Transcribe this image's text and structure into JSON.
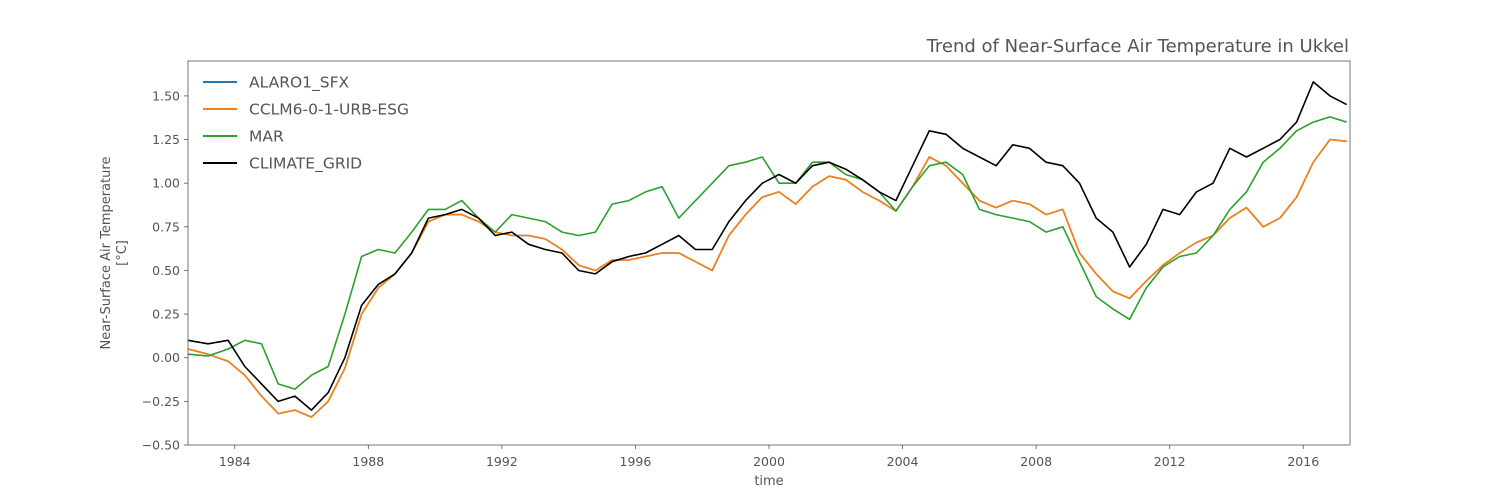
{
  "chart_data": {
    "type": "line",
    "title": "Trend of Near-Surface Air Temperature in Ukkel",
    "xlabel": "time",
    "ylabel": "Near-Surface Air Temperature",
    "ylabel_unit": "[°C]",
    "xlim": [
      1982.6,
      2017.4
    ],
    "ylim": [
      -0.5,
      1.7
    ],
    "x_ticks": [
      1984,
      1988,
      1992,
      1996,
      2000,
      2004,
      2008,
      2012,
      2016
    ],
    "y_ticks": [
      -0.5,
      -0.25,
      0.0,
      0.25,
      0.5,
      0.75,
      1.0,
      1.25,
      1.5
    ],
    "y_tick_labels": [
      "−0.50",
      "−0.25",
      "0.00",
      "0.25",
      "0.50",
      "0.75",
      "1.00",
      "1.25",
      "1.50"
    ],
    "grid": false,
    "legend_position": "top-left",
    "series": [
      {
        "name": "ALARO1_SFX",
        "color": "#1f77b4",
        "x": [
          1982.6,
          1983.2,
          1983.8,
          1984.3,
          1984.8,
          1985.3,
          1985.8,
          1986.3,
          1986.8,
          1987.3,
          1987.8,
          1988.3,
          1988.8,
          1989.3,
          1989.8,
          1990.3,
          1990.8,
          1991.3,
          1991.8,
          1992.3,
          1992.8,
          1993.3,
          1993.8,
          1994.3,
          1994.8,
          1995.3,
          1995.8,
          1996.3,
          1996.8,
          1997.3,
          1997.8,
          1998.3,
          1998.8,
          1999.3,
          1999.8,
          2000.3,
          2000.8,
          2001.3,
          2001.8,
          2002.3,
          2002.8,
          2003.3,
          2003.8,
          2004.3,
          2004.8,
          2005.3,
          2005.8,
          2006.3,
          2006.8,
          2007.3,
          2007.8,
          2008.3,
          2008.8,
          2009.3,
          2009.8,
          2010.3,
          2010.8,
          2011.3,
          2011.8,
          2012.3,
          2012.8,
          2013.3,
          2013.8,
          2014.3,
          2014.8,
          2015.3,
          2015.8,
          2016.3,
          2016.8,
          2017.3
        ],
        "y": [
          0.05,
          0.02,
          -0.02,
          -0.1,
          -0.22,
          -0.32,
          -0.3,
          -0.34,
          -0.25,
          -0.06,
          0.25,
          0.4,
          0.48,
          0.6,
          0.78,
          0.82,
          0.82,
          0.78,
          0.72,
          0.7,
          0.7,
          0.68,
          0.62,
          0.53,
          0.5,
          0.56,
          0.56,
          0.58,
          0.6,
          0.6,
          0.55,
          0.5,
          0.7,
          0.82,
          0.92,
          0.95,
          0.88,
          0.98,
          1.04,
          1.02,
          0.95,
          0.9,
          0.84,
          0.98,
          1.15,
          1.1,
          1.0,
          0.9,
          0.86,
          0.9,
          0.88,
          0.82,
          0.85,
          0.6,
          0.48,
          0.38,
          0.34,
          0.44,
          0.53,
          0.6,
          0.66,
          0.7,
          0.8,
          0.86,
          0.75,
          0.8,
          0.92,
          1.12,
          1.25,
          1.24
        ]
      },
      {
        "name": "CCLM6-0-1-URB-ESG",
        "color": "#ff7f0e",
        "x": [
          1982.6,
          1983.2,
          1983.8,
          1984.3,
          1984.8,
          1985.3,
          1985.8,
          1986.3,
          1986.8,
          1987.3,
          1987.8,
          1988.3,
          1988.8,
          1989.3,
          1989.8,
          1990.3,
          1990.8,
          1991.3,
          1991.8,
          1992.3,
          1992.8,
          1993.3,
          1993.8,
          1994.3,
          1994.8,
          1995.3,
          1995.8,
          1996.3,
          1996.8,
          1997.3,
          1997.8,
          1998.3,
          1998.8,
          1999.3,
          1999.8,
          2000.3,
          2000.8,
          2001.3,
          2001.8,
          2002.3,
          2002.8,
          2003.3,
          2003.8,
          2004.3,
          2004.8,
          2005.3,
          2005.8,
          2006.3,
          2006.8,
          2007.3,
          2007.8,
          2008.3,
          2008.8,
          2009.3,
          2009.8,
          2010.3,
          2010.8,
          2011.3,
          2011.8,
          2012.3,
          2012.8,
          2013.3,
          2013.8,
          2014.3,
          2014.8,
          2015.3,
          2015.8,
          2016.3,
          2016.8,
          2017.3
        ],
        "y": [
          0.05,
          0.02,
          -0.02,
          -0.1,
          -0.22,
          -0.32,
          -0.3,
          -0.34,
          -0.25,
          -0.06,
          0.25,
          0.4,
          0.48,
          0.6,
          0.78,
          0.82,
          0.82,
          0.78,
          0.72,
          0.7,
          0.7,
          0.68,
          0.62,
          0.53,
          0.5,
          0.56,
          0.56,
          0.58,
          0.6,
          0.6,
          0.55,
          0.5,
          0.7,
          0.82,
          0.92,
          0.95,
          0.88,
          0.98,
          1.04,
          1.02,
          0.95,
          0.9,
          0.84,
          0.98,
          1.15,
          1.1,
          1.0,
          0.9,
          0.86,
          0.9,
          0.88,
          0.82,
          0.85,
          0.6,
          0.48,
          0.38,
          0.34,
          0.44,
          0.53,
          0.6,
          0.66,
          0.7,
          0.8,
          0.86,
          0.75,
          0.8,
          0.92,
          1.12,
          1.25,
          1.24
        ]
      },
      {
        "name": "MAR",
        "color": "#2ca02c",
        "x": [
          1982.6,
          1983.2,
          1983.8,
          1984.3,
          1984.8,
          1985.3,
          1985.8,
          1986.3,
          1986.8,
          1987.3,
          1987.8,
          1988.3,
          1988.8,
          1989.3,
          1989.8,
          1990.3,
          1990.8,
          1991.3,
          1991.8,
          1992.3,
          1992.8,
          1993.3,
          1993.8,
          1994.3,
          1994.8,
          1995.3,
          1995.8,
          1996.3,
          1996.8,
          1997.3,
          1997.8,
          1998.3,
          1998.8,
          1999.3,
          1999.8,
          2000.3,
          2000.8,
          2001.3,
          2001.8,
          2002.3,
          2002.8,
          2003.3,
          2003.8,
          2004.3,
          2004.8,
          2005.3,
          2005.8,
          2006.3,
          2006.8,
          2007.3,
          2007.8,
          2008.3,
          2008.8,
          2009.3,
          2009.8,
          2010.3,
          2010.8,
          2011.3,
          2011.8,
          2012.3,
          2012.8,
          2013.3,
          2013.8,
          2014.3,
          2014.8,
          2015.3,
          2015.8,
          2016.3,
          2016.8,
          2017.3
        ],
        "y": [
          0.02,
          0.01,
          0.05,
          0.1,
          0.08,
          -0.15,
          -0.18,
          -0.1,
          -0.05,
          0.25,
          0.58,
          0.62,
          0.6,
          0.72,
          0.85,
          0.85,
          0.9,
          0.8,
          0.72,
          0.82,
          0.8,
          0.78,
          0.72,
          0.7,
          0.72,
          0.88,
          0.9,
          0.95,
          0.98,
          0.8,
          0.9,
          1.0,
          1.1,
          1.12,
          1.15,
          1.0,
          1.0,
          1.12,
          1.12,
          1.05,
          1.02,
          0.95,
          0.84,
          0.98,
          1.1,
          1.12,
          1.05,
          0.85,
          0.82,
          0.8,
          0.78,
          0.72,
          0.75,
          0.55,
          0.35,
          0.28,
          0.22,
          0.4,
          0.52,
          0.58,
          0.6,
          0.7,
          0.85,
          0.95,
          1.12,
          1.2,
          1.3,
          1.35,
          1.38,
          1.35
        ]
      },
      {
        "name": "CLIMATE_GRID",
        "color": "#000000",
        "x": [
          1982.6,
          1983.2,
          1983.8,
          1984.3,
          1984.8,
          1985.3,
          1985.8,
          1986.3,
          1986.8,
          1987.3,
          1987.8,
          1988.3,
          1988.8,
          1989.3,
          1989.8,
          1990.3,
          1990.8,
          1991.3,
          1991.8,
          1992.3,
          1992.8,
          1993.3,
          1993.8,
          1994.3,
          1994.8,
          1995.3,
          1995.8,
          1996.3,
          1996.8,
          1997.3,
          1997.8,
          1998.3,
          1998.8,
          1999.3,
          1999.8,
          2000.3,
          2000.8,
          2001.3,
          2001.8,
          2002.3,
          2002.8,
          2003.3,
          2003.8,
          2004.3,
          2004.8,
          2005.3,
          2005.8,
          2006.3,
          2006.8,
          2007.3,
          2007.8,
          2008.3,
          2008.8,
          2009.3,
          2009.8,
          2010.3,
          2010.8,
          2011.3,
          2011.8,
          2012.3,
          2012.8,
          2013.3,
          2013.8,
          2014.3,
          2014.8,
          2015.3,
          2015.8,
          2016.3,
          2016.8,
          2017.3
        ],
        "y": [
          0.1,
          0.08,
          0.1,
          -0.05,
          -0.15,
          -0.25,
          -0.22,
          -0.3,
          -0.2,
          0.0,
          0.3,
          0.42,
          0.48,
          0.6,
          0.8,
          0.82,
          0.85,
          0.8,
          0.7,
          0.72,
          0.65,
          0.62,
          0.6,
          0.5,
          0.48,
          0.55,
          0.58,
          0.6,
          0.65,
          0.7,
          0.62,
          0.62,
          0.78,
          0.9,
          1.0,
          1.05,
          1.0,
          1.1,
          1.12,
          1.08,
          1.02,
          0.95,
          0.9,
          1.1,
          1.3,
          1.28,
          1.2,
          1.15,
          1.1,
          1.22,
          1.2,
          1.12,
          1.1,
          1.0,
          0.8,
          0.72,
          0.52,
          0.65,
          0.85,
          0.82,
          0.95,
          1.0,
          1.2,
          1.15,
          1.2,
          1.25,
          1.35,
          1.58,
          1.5,
          1.45
        ]
      }
    ]
  }
}
